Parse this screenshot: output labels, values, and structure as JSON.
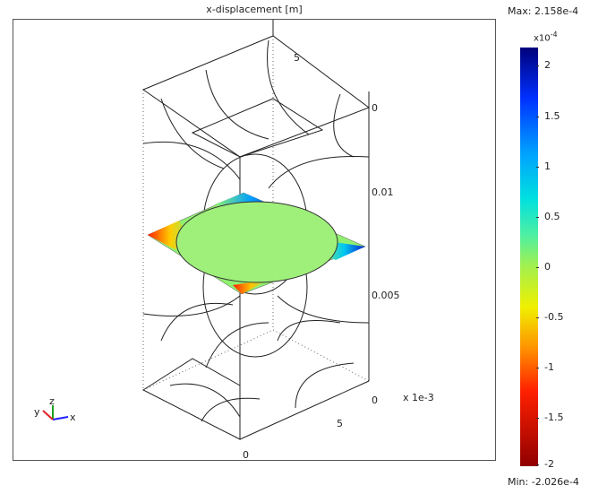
{
  "plot": {
    "title": "x-displacement [m]",
    "axis_ticks": {
      "z_top": "0",
      "z_mid1": "0.01",
      "z_mid2": "0.005",
      "z_bottom": "0",
      "y_top": "5",
      "x_right": "5",
      "x_bottom": "0"
    },
    "scale_note": "x 1e-3",
    "triad": {
      "x": "x",
      "y": "y",
      "z": "z"
    }
  },
  "colorbar": {
    "max_label": "Max: 2.158e-4",
    "min_label": "Min: -2.026e-4",
    "exponent_base": "x10",
    "exponent_power": "-4",
    "ticks": [
      "2",
      "1.5",
      "1",
      "0.5",
      "0",
      "-0.5",
      "-1",
      "-1.5",
      "-2"
    ],
    "colors": {
      "top": "#00007a",
      "mid": "#a0f050",
      "bottom": "#900000"
    }
  }
}
